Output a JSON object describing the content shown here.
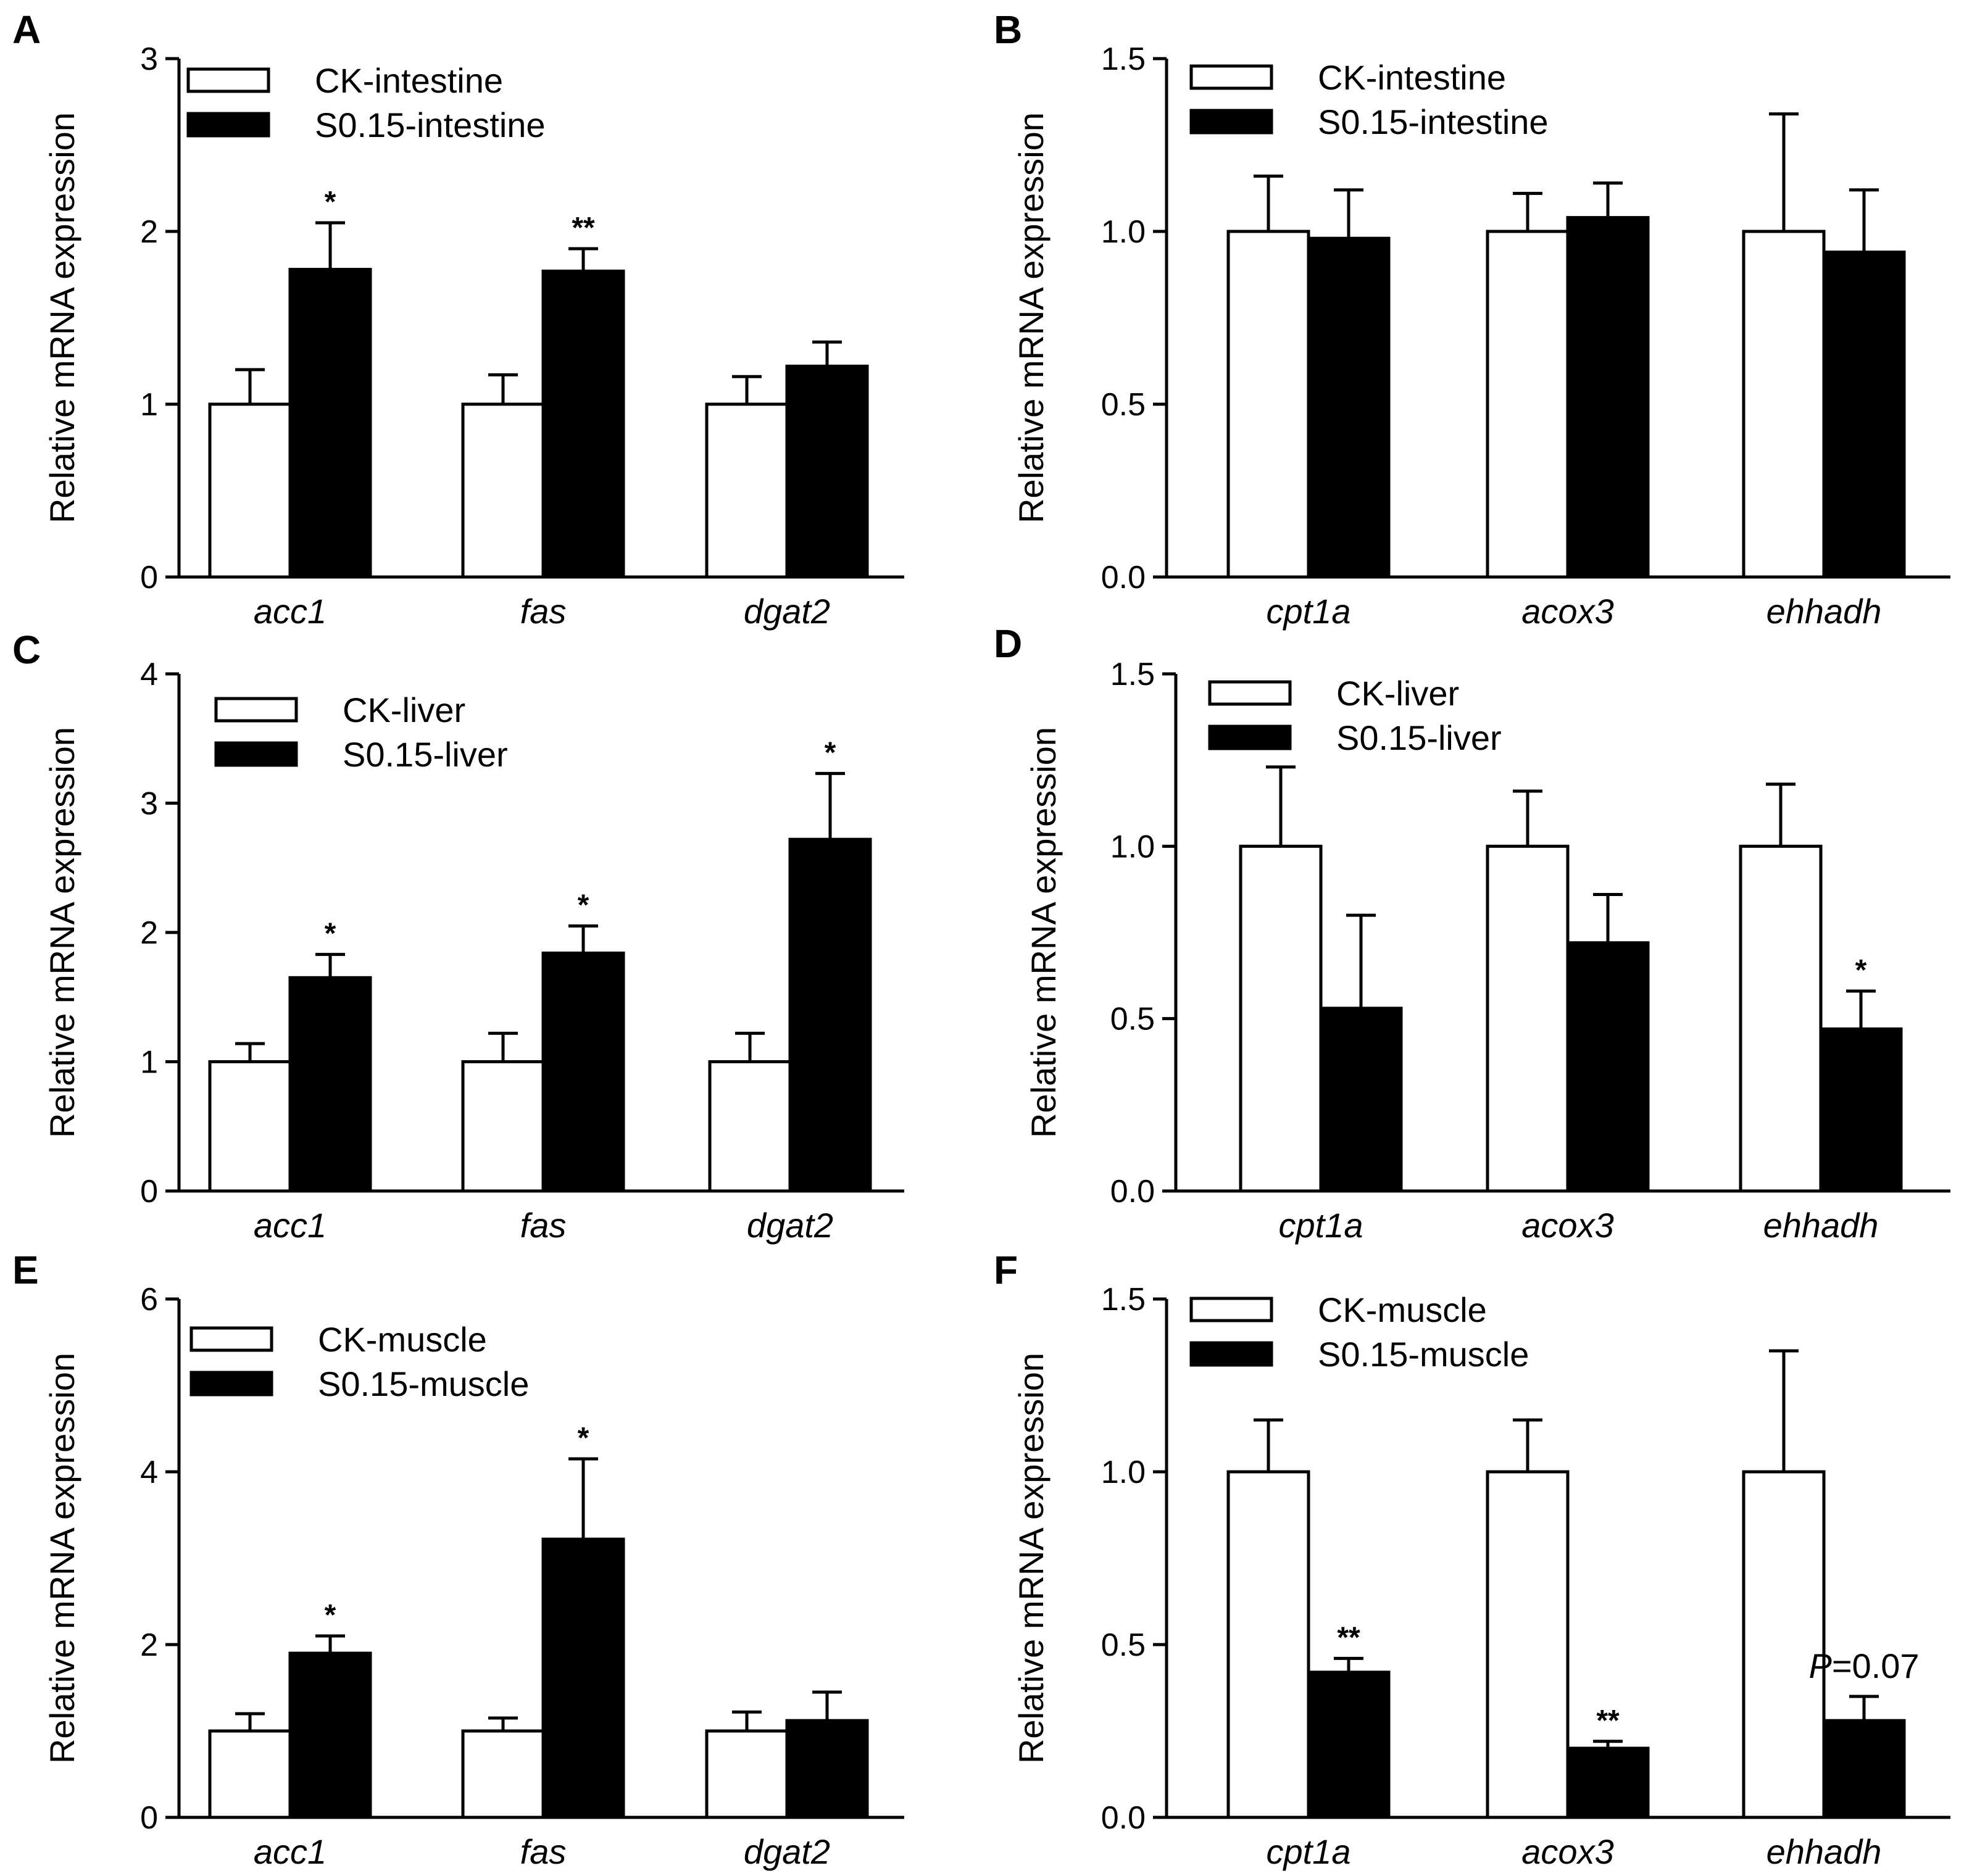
{
  "figure": {
    "colors": {
      "control_fill": "#ffffff",
      "treatment_fill": "#000000",
      "stroke": "#000000"
    }
  },
  "chart_data": [
    {
      "panel": "A",
      "type": "bar",
      "ylabel": "Relative mRNA expression",
      "ylim": [
        0,
        3
      ],
      "yticks": [
        "0",
        "1",
        "2",
        "3"
      ],
      "categories": [
        "acc1",
        "fas",
        "dgat2"
      ],
      "series": [
        {
          "name": "CK-intestine",
          "values": [
            1.0,
            1.0,
            1.0
          ],
          "errors": [
            0.2,
            0.17,
            0.16
          ]
        },
        {
          "name": "S0.15-intestine",
          "values": [
            1.78,
            1.77,
            1.22
          ],
          "errors": [
            0.27,
            0.13,
            0.14
          ]
        }
      ],
      "annotations": [
        "*",
        "**",
        ""
      ],
      "legend": "top-left"
    },
    {
      "panel": "B",
      "type": "bar",
      "ylabel": "Relative mRNA expression",
      "ylim": [
        0,
        1.5
      ],
      "yticks": [
        "0.0",
        "0.5",
        "1.0",
        "1.5"
      ],
      "categories": [
        "cpt1a",
        "acox3",
        "ehhadh"
      ],
      "series": [
        {
          "name": "CK-intestine",
          "values": [
            1.0,
            1.0,
            1.0
          ],
          "errors": [
            0.16,
            0.11,
            0.34
          ]
        },
        {
          "name": "S0.15-intestine",
          "values": [
            0.98,
            1.04,
            0.94
          ],
          "errors": [
            0.14,
            0.1,
            0.18
          ]
        }
      ],
      "annotations": [
        "",
        "",
        ""
      ],
      "legend": "top-left"
    },
    {
      "panel": "C",
      "type": "bar",
      "ylabel": "Relative mRNA expression",
      "ylim": [
        0,
        4
      ],
      "yticks": [
        "0",
        "1",
        "2",
        "3",
        "4"
      ],
      "categories": [
        "acc1",
        "fas",
        "dgat2"
      ],
      "series": [
        {
          "name": "CK-liver",
          "values": [
            1.0,
            1.0,
            1.0
          ],
          "errors": [
            0.14,
            0.22,
            0.22
          ]
        },
        {
          "name": "S0.15-liver",
          "values": [
            1.65,
            1.84,
            2.72
          ],
          "errors": [
            0.18,
            0.21,
            0.51
          ]
        }
      ],
      "annotations": [
        "*",
        "*",
        "*"
      ],
      "legend": "top-left"
    },
    {
      "panel": "D",
      "type": "bar",
      "ylabel": "Relative mRNA expression",
      "ylim": [
        0,
        1.5
      ],
      "yticks": [
        "0.0",
        "0.5",
        "1.0",
        "1.5"
      ],
      "categories": [
        "cpt1a",
        "acox3",
        "ehhadh"
      ],
      "series": [
        {
          "name": "CK-liver",
          "values": [
            1.0,
            1.0,
            1.0
          ],
          "errors": [
            0.23,
            0.16,
            0.18
          ]
        },
        {
          "name": "S0.15-liver",
          "values": [
            0.53,
            0.72,
            0.47
          ],
          "errors": [
            0.27,
            0.14,
            0.11
          ]
        }
      ],
      "annotations": [
        "",
        "",
        "*"
      ],
      "legend": "top-left"
    },
    {
      "panel": "E",
      "type": "bar",
      "ylabel": "Relative mRNA expression",
      "ylim": [
        0,
        6
      ],
      "yticks": [
        "0",
        "2",
        "4",
        "6"
      ],
      "categories": [
        "acc1",
        "fas",
        "dgat2"
      ],
      "series": [
        {
          "name": "CK-muscle",
          "values": [
            1.0,
            1.0,
            1.0
          ],
          "errors": [
            0.2,
            0.15,
            0.22
          ]
        },
        {
          "name": "S0.15-muscle",
          "values": [
            1.9,
            3.22,
            1.12
          ],
          "errors": [
            0.2,
            0.93,
            0.33
          ]
        }
      ],
      "annotations": [
        "*",
        "*",
        ""
      ],
      "legend": "top-left"
    },
    {
      "panel": "F",
      "type": "bar",
      "ylabel": "Relative mRNA expression",
      "ylim": [
        0,
        1.5
      ],
      "yticks": [
        "0.0",
        "0.5",
        "1.0",
        "1.5"
      ],
      "categories": [
        "cpt1a",
        "acox3",
        "ehhadh"
      ],
      "series": [
        {
          "name": "CK-muscle",
          "values": [
            1.0,
            1.0,
            1.0
          ],
          "errors": [
            0.15,
            0.15,
            0.35
          ]
        },
        {
          "name": "S0.15-muscle",
          "values": [
            0.42,
            0.2,
            0.28
          ],
          "errors": [
            0.04,
            0.02,
            0.07
          ]
        }
      ],
      "annotations": [
        "**",
        "**",
        ""
      ],
      "notes": [
        "",
        "",
        "P=0.07"
      ],
      "legend": "top-left"
    }
  ]
}
